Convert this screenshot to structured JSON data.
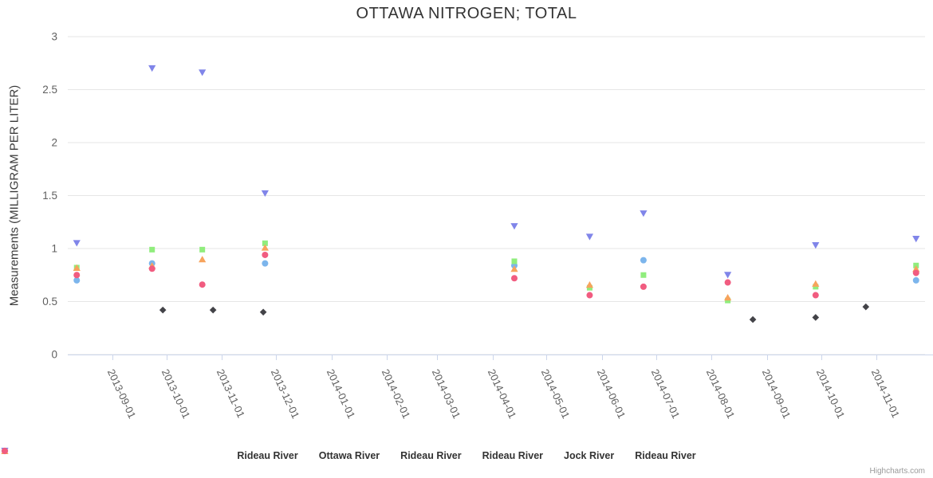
{
  "title": "OTTAWA NITROGEN; TOTAL",
  "credits_label": "Highcharts.com",
  "chart_data": {
    "type": "scatter",
    "title": "OTTAWA NITROGEN; TOTAL",
    "xlabel": "",
    "ylabel": "Measurements (MILLIGRAM PER LITER)",
    "x_type": "datetime",
    "x_min": "2013-08-07",
    "x_max": "2014-11-28",
    "x_ticks": [
      "2013-09-01",
      "2013-10-01",
      "2013-11-01",
      "2013-12-01",
      "2014-01-01",
      "2014-02-01",
      "2014-03-01",
      "2014-04-01",
      "2014-05-01",
      "2014-06-01",
      "2014-07-01",
      "2014-08-01",
      "2014-09-01",
      "2014-10-01",
      "2014-11-01"
    ],
    "ylim": [
      0,
      3
    ],
    "y_ticks": [
      "0",
      "0.5",
      "1",
      "1.5",
      "2",
      "2.5",
      "3"
    ],
    "grid": true,
    "legend_position": "bottom",
    "background": "#ffffff",
    "grid_color": "#e6e6e6",
    "axis_line_color": "#ccd6eb",
    "label_color": "#606060",
    "series": [
      {
        "name": "Rideau River",
        "color": "#7cb5ec",
        "marker": "circle",
        "points": [
          {
            "x": "2013-08-12",
            "y": 0.7
          },
          {
            "x": "2013-09-23",
            "y": 0.86
          },
          {
            "x": "2013-11-25",
            "y": 0.86
          },
          {
            "x": "2014-04-13",
            "y": 0.84
          },
          {
            "x": "2014-06-24",
            "y": 0.89
          },
          {
            "x": "2014-11-23",
            "y": 0.7
          }
        ]
      },
      {
        "name": "Ottawa River",
        "color": "#434348",
        "marker": "diamond",
        "points": [
          {
            "x": "2013-09-29",
            "y": 0.42
          },
          {
            "x": "2013-10-27",
            "y": 0.42
          },
          {
            "x": "2013-11-24",
            "y": 0.4
          },
          {
            "x": "2014-08-24",
            "y": 0.33
          },
          {
            "x": "2014-09-28",
            "y": 0.35
          },
          {
            "x": "2014-10-26",
            "y": 0.45
          }
        ]
      },
      {
        "name": "Rideau River",
        "color": "#90ed7d",
        "marker": "square",
        "points": [
          {
            "x": "2013-08-12",
            "y": 0.82
          },
          {
            "x": "2013-09-23",
            "y": 0.99
          },
          {
            "x": "2013-10-21",
            "y": 0.99
          },
          {
            "x": "2013-11-25",
            "y": 1.05
          },
          {
            "x": "2014-04-13",
            "y": 0.88
          },
          {
            "x": "2014-05-25",
            "y": 0.63
          },
          {
            "x": "2014-06-24",
            "y": 0.75
          },
          {
            "x": "2014-08-10",
            "y": 0.51
          },
          {
            "x": "2014-09-28",
            "y": 0.64
          },
          {
            "x": "2014-11-23",
            "y": 0.84
          }
        ]
      },
      {
        "name": "Rideau River",
        "color": "#f7a35c",
        "marker": "triangle",
        "points": [
          {
            "x": "2013-08-12",
            "y": 0.82
          },
          {
            "x": "2013-09-23",
            "y": 0.84
          },
          {
            "x": "2013-10-21",
            "y": 0.9
          },
          {
            "x": "2013-11-25",
            "y": 1.01
          },
          {
            "x": "2014-04-13",
            "y": 0.81
          },
          {
            "x": "2014-05-25",
            "y": 0.66
          },
          {
            "x": "2014-08-10",
            "y": 0.54
          },
          {
            "x": "2014-09-28",
            "y": 0.67
          },
          {
            "x": "2014-11-23",
            "y": 0.81
          }
        ]
      },
      {
        "name": "Jock River",
        "color": "#8085e9",
        "marker": "triangle-down",
        "points": [
          {
            "x": "2013-08-12",
            "y": 1.05
          },
          {
            "x": "2013-09-23",
            "y": 2.7
          },
          {
            "x": "2013-10-21",
            "y": 2.66
          },
          {
            "x": "2013-11-25",
            "y": 1.52
          },
          {
            "x": "2014-04-13",
            "y": 1.21
          },
          {
            "x": "2014-05-25",
            "y": 1.11
          },
          {
            "x": "2014-06-24",
            "y": 1.33
          },
          {
            "x": "2014-08-10",
            "y": 0.75
          },
          {
            "x": "2014-09-28",
            "y": 1.03
          },
          {
            "x": "2014-11-23",
            "y": 1.09
          }
        ]
      },
      {
        "name": "Rideau River",
        "color": "#f15c80",
        "marker": "circle",
        "points": [
          {
            "x": "2013-08-12",
            "y": 0.75
          },
          {
            "x": "2013-09-23",
            "y": 0.81
          },
          {
            "x": "2013-10-21",
            "y": 0.66
          },
          {
            "x": "2013-11-25",
            "y": 0.94
          },
          {
            "x": "2014-04-13",
            "y": 0.72
          },
          {
            "x": "2014-05-25",
            "y": 0.56
          },
          {
            "x": "2014-06-24",
            "y": 0.64
          },
          {
            "x": "2014-08-10",
            "y": 0.68
          },
          {
            "x": "2014-09-28",
            "y": 0.56
          },
          {
            "x": "2014-11-23",
            "y": 0.77
          }
        ]
      }
    ]
  }
}
